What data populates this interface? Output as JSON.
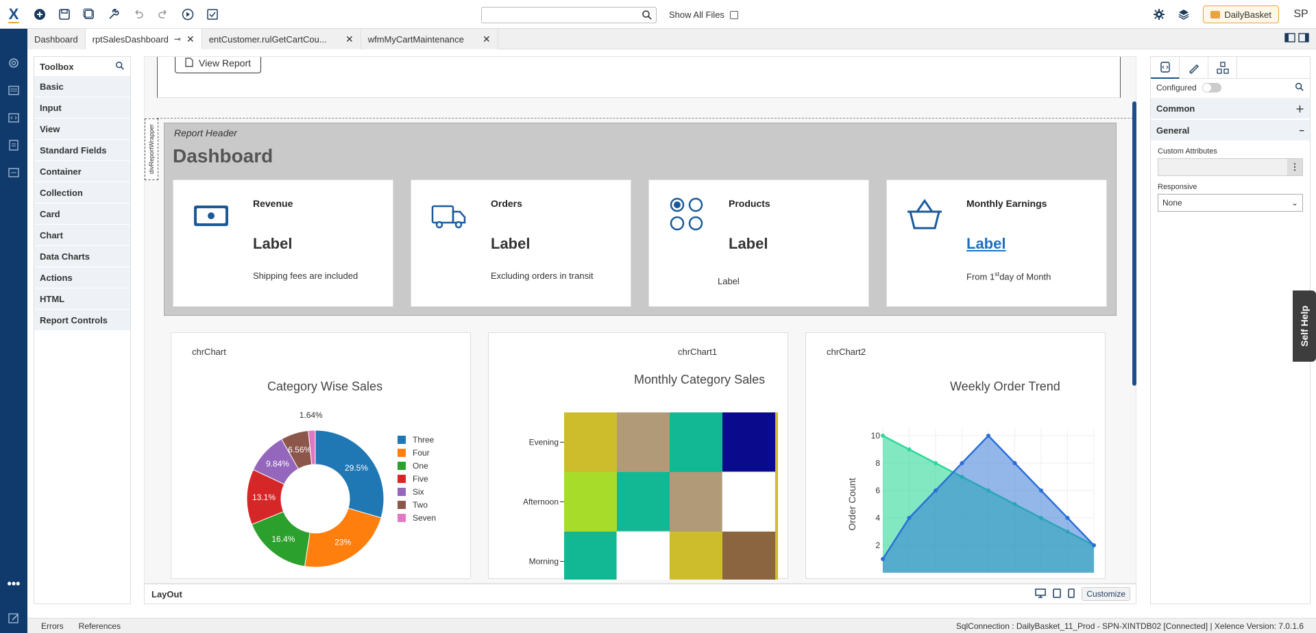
{
  "app": {
    "logo": "X",
    "search_placeholder": "",
    "show_all_files": "Show All Files",
    "workspace": "DailyBasket",
    "user_initials": "SP"
  },
  "tabs": [
    {
      "label": "Dashboard"
    },
    {
      "label": "rptSalesDashboard"
    },
    {
      "label": "entCustomer.rulGetCartCou..."
    },
    {
      "label": "wfmMyCartMaintenance"
    }
  ],
  "toolbox": {
    "title": "Toolbox",
    "items": [
      "Basic",
      "Input",
      "View",
      "Standard Fields",
      "Container",
      "Collection",
      "Card",
      "Chart",
      "Data Charts",
      "Actions",
      "HTML",
      "Report Controls"
    ]
  },
  "canvas": {
    "view_report": "View Report",
    "wrapper_label": "divReportWrapper",
    "report_header": "Report Header",
    "dashboard_title": "Dashboard",
    "cards": [
      {
        "title": "Revenue",
        "value": "Label",
        "sub": "Shipping fees are included",
        "icon": "cash-icon"
      },
      {
        "title": "Orders",
        "value": "Label",
        "sub": "Excluding orders in transit",
        "icon": "truck-icon"
      },
      {
        "title": "Products",
        "value": "Label",
        "sub": "Label",
        "icon": "circles-icon"
      },
      {
        "title": "Monthly Earnings",
        "value": "Label",
        "sub_pre": "From 1",
        "sub_sup": "st",
        "sub_post": "day of Month",
        "icon": "basket-icon"
      }
    ]
  },
  "charts": {
    "c0": {
      "name": "chrChart",
      "title": "Category Wise Sales"
    },
    "c1": {
      "name": "chrChart1",
      "title": "Monthly Category Sales"
    },
    "c2": {
      "name": "chrChart2",
      "title": "Weekly Order Trend"
    }
  },
  "chart_data": [
    {
      "type": "pie",
      "title": "Category Wise Sales",
      "categories": [
        "Three",
        "Four",
        "One",
        "Five",
        "Six",
        "Two",
        "Seven"
      ],
      "values": [
        29.5,
        23,
        16.4,
        13.1,
        9.84,
        6.56,
        1.64
      ],
      "labels": [
        "29.5%",
        "23%",
        "16.4%",
        "13.1%",
        "9.84%",
        "6.56%",
        "1.64%"
      ],
      "colors": [
        "#1f77b4",
        "#ff7f0e",
        "#2ca02c",
        "#d62728",
        "#9467bd",
        "#8c564b",
        "#e377c2"
      ],
      "legend": "right",
      "donut": true
    },
    {
      "type": "heatmap",
      "title": "Monthly Category Sales",
      "y": [
        "Evening",
        "Afternoon",
        "Morning"
      ],
      "colors": [
        [
          "#cdbd2c",
          "#b09a78",
          "#12b894",
          "#0a0a8c"
        ],
        [
          "#a8dc2a",
          "#12b894",
          "#b09a78",
          "#ffffff"
        ],
        [
          "#12b894",
          "#ffffff",
          "#cdbd2c",
          "#8b6440"
        ]
      ]
    },
    {
      "type": "area",
      "title": "Weekly Order Trend",
      "ylabel": "Order Count",
      "yticks": [
        2,
        4,
        6,
        8,
        10
      ],
      "ylim": [
        0,
        10
      ],
      "series": [
        {
          "values": [
            10,
            9,
            8,
            7,
            6,
            5,
            4,
            3,
            2
          ],
          "color": "#2ed89a"
        },
        {
          "values": [
            1,
            4,
            6,
            8,
            10,
            8,
            6,
            4,
            2
          ],
          "color": "#2a6fd6"
        }
      ]
    }
  ],
  "layout_bar": {
    "label": "LayOut",
    "customize": "Customize"
  },
  "props": {
    "configured": "Configured",
    "common": "Common",
    "general": "General",
    "custom_attributes": "Custom Attributes",
    "responsive": "Responsive",
    "responsive_value": "None"
  },
  "self_help": "Self Help",
  "status": {
    "errors": "Errors",
    "references": "References",
    "connection": "SqlConnection :  DailyBasket_11_Prod -  SPN-XINTDB02  [Connected]  | Xelence Version:  7.0.1.6"
  }
}
